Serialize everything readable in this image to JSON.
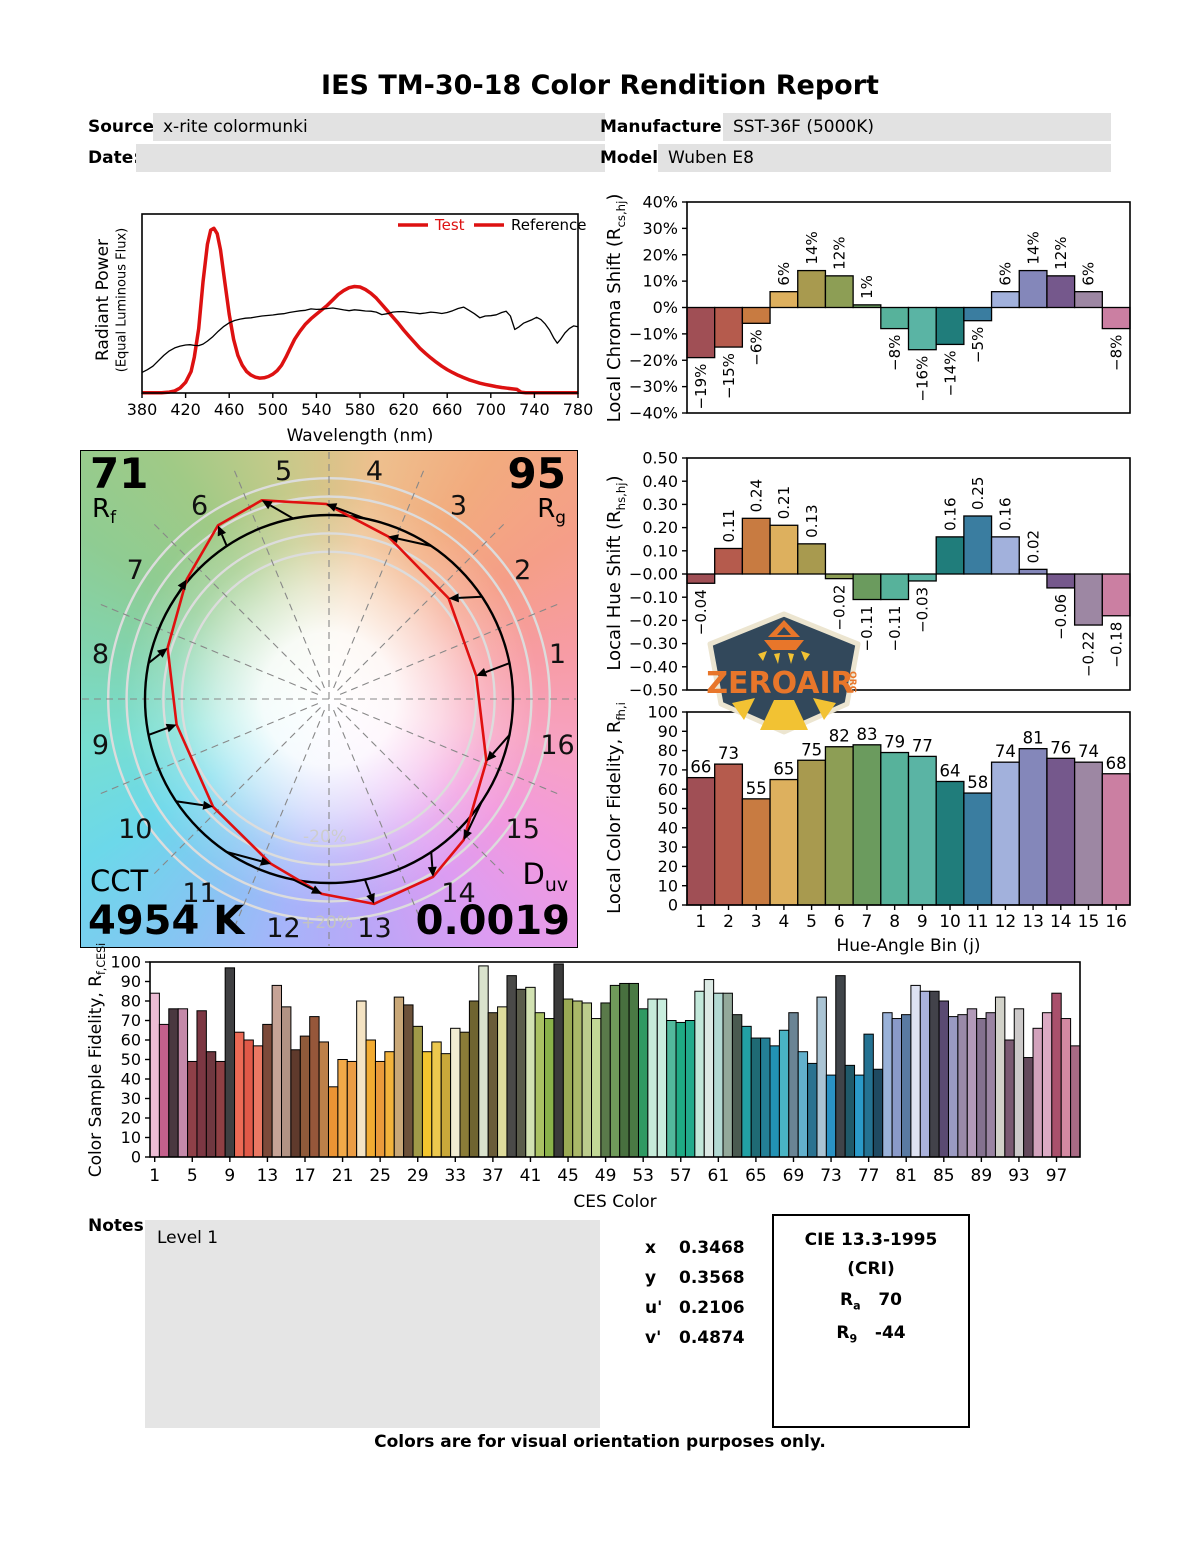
{
  "title": "IES TM-30-18 Color Rendition Report",
  "header": {
    "source_label": "Source:",
    "source_value": "x-rite colormunki",
    "date_label": "Date:",
    "date_value": "",
    "manufacturer_label": "Manufacturer:",
    "manufacturer_value": "SST-36F (5000K)",
    "model_label": "Model:",
    "model_value": "Wuben E8"
  },
  "cvg": {
    "rf_value": "71",
    "rf_label_main": "R",
    "rf_label_sub": "f",
    "rg_value": "95",
    "rg_label_main": "R",
    "rg_label_sub": "g",
    "cct_label": "CCT",
    "cct_value": "4954 K",
    "duv_label_main": "D",
    "duv_label_sub": "uv",
    "duv_value": "0.0019",
    "ring_label_inner": "-20%",
    "ring_label_outer": "+20%"
  },
  "hue_bin_colors": [
    "#a04f55",
    "#b55b4d",
    "#c87b41",
    "#ddb05e",
    "#a89a4f",
    "#8d9e55",
    "#6b9b5e",
    "#57b29b",
    "#5ab4a4",
    "#207d7b",
    "#3a7da0",
    "#a2b1dc",
    "#8487ba",
    "#75588c",
    "#9d87a3",
    "#cb7fa2"
  ],
  "chart_data": [
    {
      "id": "spd",
      "type": "line",
      "xlabel": "Wavelength (nm)",
      "ylabel_line1": "Radiant Power",
      "ylabel_line2": "(Equal Luminous Flux)",
      "xlim": [
        380,
        780
      ],
      "ylim": [
        0,
        1
      ],
      "xticks": [
        380,
        420,
        460,
        500,
        540,
        580,
        620,
        660,
        700,
        740,
        780
      ],
      "legend": [
        {
          "label": "Test",
          "line_color": "#dd1111",
          "text_color": "#dd1111"
        },
        {
          "label": "Reference",
          "line_color": "#dd1111",
          "text_color": "#000000"
        }
      ],
      "series": [
        {
          "name": "Test",
          "color": "#dd1111",
          "width": 3.5,
          "points": [
            [
              380,
              0.001
            ],
            [
              398,
              0.001
            ],
            [
              405,
              0.005
            ],
            [
              410,
              0.012
            ],
            [
              415,
              0.028
            ],
            [
              420,
              0.06
            ],
            [
              425,
              0.12
            ],
            [
              428,
              0.2
            ],
            [
              432,
              0.36
            ],
            [
              436,
              0.62
            ],
            [
              440,
              0.83
            ],
            [
              443,
              0.91
            ],
            [
              446,
              0.92
            ],
            [
              449,
              0.89
            ],
            [
              452,
              0.8
            ],
            [
              456,
              0.62
            ],
            [
              460,
              0.44
            ],
            [
              464,
              0.3
            ],
            [
              468,
              0.21
            ],
            [
              472,
              0.155
            ],
            [
              476,
              0.12
            ],
            [
              480,
              0.1
            ],
            [
              484,
              0.088
            ],
            [
              488,
              0.083
            ],
            [
              492,
              0.085
            ],
            [
              496,
              0.092
            ],
            [
              500,
              0.105
            ],
            [
              504,
              0.125
            ],
            [
              508,
              0.155
            ],
            [
              512,
              0.2
            ],
            [
              516,
              0.25
            ],
            [
              520,
              0.3
            ],
            [
              525,
              0.345
            ],
            [
              530,
              0.385
            ],
            [
              535,
              0.415
            ],
            [
              540,
              0.44
            ],
            [
              545,
              0.465
            ],
            [
              550,
              0.49
            ],
            [
              555,
              0.52
            ],
            [
              560,
              0.55
            ],
            [
              565,
              0.572
            ],
            [
              570,
              0.588
            ],
            [
              575,
              0.595
            ],
            [
              580,
              0.592
            ],
            [
              585,
              0.578
            ],
            [
              590,
              0.557
            ],
            [
              595,
              0.53
            ],
            [
              600,
              0.495
            ],
            [
              605,
              0.46
            ],
            [
              610,
              0.425
            ],
            [
              615,
              0.39
            ],
            [
              620,
              0.352
            ],
            [
              625,
              0.317
            ],
            [
              630,
              0.283
            ],
            [
              635,
              0.25
            ],
            [
              640,
              0.222
            ],
            [
              645,
              0.196
            ],
            [
              650,
              0.172
            ],
            [
              655,
              0.15
            ],
            [
              660,
              0.131
            ],
            [
              665,
              0.114
            ],
            [
              670,
              0.099
            ],
            [
              675,
              0.086
            ],
            [
              680,
              0.074
            ],
            [
              685,
              0.064
            ],
            [
              690,
              0.055
            ],
            [
              695,
              0.048
            ],
            [
              700,
              0.042
            ],
            [
              705,
              0.036
            ],
            [
              710,
              0.031
            ],
            [
              715,
              0.027
            ],
            [
              720,
              0.023
            ],
            [
              724,
              0.02
            ],
            [
              728,
              0.004
            ],
            [
              732,
              0.001
            ],
            [
              780,
              0.001
            ]
          ]
        },
        {
          "name": "Reference",
          "color": "#000000",
          "width": 1.3,
          "points": [
            [
              380,
              0.115
            ],
            [
              385,
              0.13
            ],
            [
              390,
              0.15
            ],
            [
              395,
              0.18
            ],
            [
              400,
              0.21
            ],
            [
              405,
              0.235
            ],
            [
              410,
              0.252
            ],
            [
              415,
              0.262
            ],
            [
              420,
              0.268
            ],
            [
              424,
              0.27
            ],
            [
              428,
              0.266
            ],
            [
              432,
              0.265
            ],
            [
              436,
              0.273
            ],
            [
              440,
              0.29
            ],
            [
              445,
              0.315
            ],
            [
              450,
              0.345
            ],
            [
              455,
              0.372
            ],
            [
              460,
              0.392
            ],
            [
              465,
              0.405
            ],
            [
              470,
              0.413
            ],
            [
              475,
              0.418
            ],
            [
              480,
              0.42
            ],
            [
              485,
              0.425
            ],
            [
              490,
              0.43
            ],
            [
              495,
              0.433
            ],
            [
              500,
              0.436
            ],
            [
              505,
              0.44
            ],
            [
              510,
              0.443
            ],
            [
              515,
              0.45
            ],
            [
              520,
              0.455
            ],
            [
              525,
              0.459
            ],
            [
              530,
              0.462
            ],
            [
              535,
              0.47
            ],
            [
              540,
              0.467
            ],
            [
              545,
              0.468
            ],
            [
              550,
              0.472
            ],
            [
              555,
              0.475
            ],
            [
              560,
              0.47
            ],
            [
              565,
              0.464
            ],
            [
              570,
              0.46
            ],
            [
              575,
              0.465
            ],
            [
              580,
              0.462
            ],
            [
              585,
              0.458
            ],
            [
              590,
              0.457
            ],
            [
              595,
              0.452
            ],
            [
              600,
              0.438
            ],
            [
              605,
              0.443
            ],
            [
              610,
              0.452
            ],
            [
              615,
              0.455
            ],
            [
              620,
              0.454
            ],
            [
              625,
              0.45
            ],
            [
              630,
              0.447
            ],
            [
              635,
              0.443
            ],
            [
              640,
              0.447
            ],
            [
              645,
              0.452
            ],
            [
              650,
              0.449
            ],
            [
              655,
              0.444
            ],
            [
              660,
              0.45
            ],
            [
              665,
              0.46
            ],
            [
              670,
              0.472
            ],
            [
              675,
              0.48
            ],
            [
              680,
              0.462
            ],
            [
              685,
              0.443
            ],
            [
              690,
              0.42
            ],
            [
              695,
              0.43
            ],
            [
              700,
              0.432
            ],
            [
              705,
              0.437
            ],
            [
              710,
              0.45
            ],
            [
              714,
              0.457
            ],
            [
              718,
              0.43
            ],
            [
              722,
              0.355
            ],
            [
              726,
              0.37
            ],
            [
              730,
              0.39
            ],
            [
              734,
              0.4
            ],
            [
              738,
              0.41
            ],
            [
              742,
              0.423
            ],
            [
              746,
              0.41
            ],
            [
              750,
              0.385
            ],
            [
              754,
              0.35
            ],
            [
              758,
              0.305
            ],
            [
              761,
              0.278
            ],
            [
              764,
              0.3
            ],
            [
              768,
              0.335
            ],
            [
              772,
              0.36
            ],
            [
              776,
              0.375
            ],
            [
              780,
              0.37
            ]
          ]
        }
      ]
    },
    {
      "id": "chroma_shift",
      "type": "bar",
      "ylabel_main": "Local Chroma Shift (R",
      "ylabel_sub": "cs,hj",
      "ylabel_end": ")",
      "ylim": [
        -40,
        40
      ],
      "ytick_step": 10,
      "ytick_suffix": "%",
      "value_suffix": "%",
      "values": [
        -19,
        -15,
        -6,
        6,
        14,
        12,
        1,
        -8,
        -16,
        -14,
        -5,
        6,
        14,
        12,
        6,
        -8
      ]
    },
    {
      "id": "hue_shift",
      "type": "bar",
      "ylabel_main": "Local Hue Shift (R",
      "ylabel_sub": "hs,hj",
      "ylabel_end": ")",
      "ylim": [
        -0.5,
        0.5
      ],
      "ytick_step": 0.1,
      "decimals": 2,
      "values": [
        -0.04,
        0.11,
        0.24,
        0.21,
        0.13,
        -0.02,
        -0.11,
        -0.11,
        -0.03,
        0.16,
        0.25,
        0.16,
        0.02,
        -0.06,
        -0.22,
        -0.18
      ]
    },
    {
      "id": "local_fidelity",
      "type": "bar",
      "ylabel_main": "Local Color Fidelity, R",
      "ylabel_sub": "fh,i",
      "xlabel": "Hue-Angle Bin (j)",
      "ylim": [
        0,
        100
      ],
      "ytick_step": 10,
      "categories": [
        "1",
        "2",
        "3",
        "4",
        "5",
        "6",
        "7",
        "8",
        "9",
        "10",
        "11",
        "12",
        "13",
        "14",
        "15",
        "16"
      ],
      "values": [
        66,
        73,
        55,
        65,
        75,
        82,
        83,
        79,
        77,
        64,
        58,
        74,
        81,
        76,
        74,
        68
      ]
    },
    {
      "id": "ces",
      "type": "bar",
      "ylabel_main": "Color Sample Fidelity, R",
      "ylabel_sub": "f,CESi",
      "xlabel": "CES Color",
      "ylim": [
        0,
        100
      ],
      "ytick_step": 10,
      "xtick_every": 4,
      "values": [
        84,
        68,
        76,
        76,
        49,
        75,
        54,
        49,
        97,
        64,
        60,
        57,
        68,
        88,
        77,
        55,
        62,
        72,
        59,
        36,
        50,
        49,
        80,
        60,
        49,
        54,
        82,
        78,
        67,
        54,
        59,
        53,
        66,
        64,
        80,
        98,
        74,
        77,
        93,
        86,
        87,
        74,
        71,
        99,
        81,
        80,
        79,
        71,
        79,
        88,
        89,
        89,
        76,
        81,
        81,
        70,
        69,
        70,
        85,
        91,
        84,
        84,
        73,
        67,
        61,
        61,
        57,
        65,
        74,
        54,
        48,
        82,
        42,
        93,
        47,
        42,
        63,
        45,
        74,
        71,
        73,
        88,
        85,
        85,
        80,
        72,
        73,
        76,
        71,
        74,
        82,
        60,
        76,
        51,
        66,
        74,
        84,
        71,
        57
      ],
      "colors": [
        "#ecbcd4",
        "#c4608c",
        "#4a3840",
        "#c489a9",
        "#8f4048",
        "#7c3743",
        "#703840",
        "#8f4044",
        "#3f3f41",
        "#ec6a55",
        "#e05948",
        "#ea7863",
        "#7c4a3a",
        "#c6a396",
        "#b29384",
        "#5f3a2c",
        "#8f5a3a",
        "#96573a",
        "#bd8049",
        "#eb9434",
        "#f2a948",
        "#eb9c43",
        "#f4e3c3",
        "#f2ab31",
        "#ea9b3b",
        "#f2b33c",
        "#c9a878",
        "#6d523a",
        "#a09a48",
        "#f2c52e",
        "#ecc84e",
        "#c9a83a",
        "#f2ecd2",
        "#8a7c38",
        "#6f6430",
        "#d9e2cc",
        "#6a5c38",
        "#dedc9c",
        "#4a4a48",
        "#5a5c4a",
        "#d2e2b2",
        "#aac263",
        "#8ab24a",
        "#3a3a3a",
        "#9aa954",
        "#aab869",
        "#bccc8c",
        "#c2d896",
        "#5a7a4a",
        "#6f9a5a",
        "#48703f",
        "#4a7a44",
        "#2f9a62",
        "#c6ecd9",
        "#c9eede",
        "#52b99c",
        "#1faa84",
        "#22ab8c",
        "#c2e8da",
        "#dce9e4",
        "#b2d9d2",
        "#93a99a",
        "#4a5a50",
        "#22a0a4",
        "#1f6a74",
        "#238096",
        "#2292b4",
        "#49b4c4",
        "#6a8494",
        "#62b0cc",
        "#2a7290",
        "#aac4d4",
        "#2a92c4",
        "#3f4449",
        "#205a6a",
        "#2a9ac9",
        "#247292",
        "#1f4a62",
        "#9ab2d9",
        "#8a9ac9",
        "#5a7aa2",
        "#dee2f2",
        "#aab2dc",
        "#42424a",
        "#5a4a72",
        "#9a9ac2",
        "#9a8aa9",
        "#b29ab9",
        "#84718f",
        "#9a84a2",
        "#d2d2c9",
        "#7a5a72",
        "#ccc9c9",
        "#64495c",
        "#d2a2bc",
        "#dcaac4",
        "#a9506c",
        "#d489a2",
        "#a96a84"
      ]
    }
  ],
  "metrics": {
    "rows": [
      {
        "label": "x",
        "value": "0.3468"
      },
      {
        "label": "y",
        "value": "0.3568"
      },
      {
        "label": "u'",
        "value": "0.2106"
      },
      {
        "label": "v'",
        "value": "0.4874"
      }
    ]
  },
  "cie": {
    "title": "CIE 13.3-1995",
    "subtitle": "(CRI)",
    "rows": [
      {
        "label_main": "R",
        "label_sub": "a",
        "value": "70"
      },
      {
        "label_main": "R",
        "label_sub": "9",
        "value": "-44"
      }
    ]
  },
  "notes": {
    "label": "Notes:",
    "text": "Level 1"
  },
  "footer": "Colors are for visual orientation purposes only.",
  "logo": {
    "text": "ZEROAIR",
    "suffix": "ORG"
  }
}
